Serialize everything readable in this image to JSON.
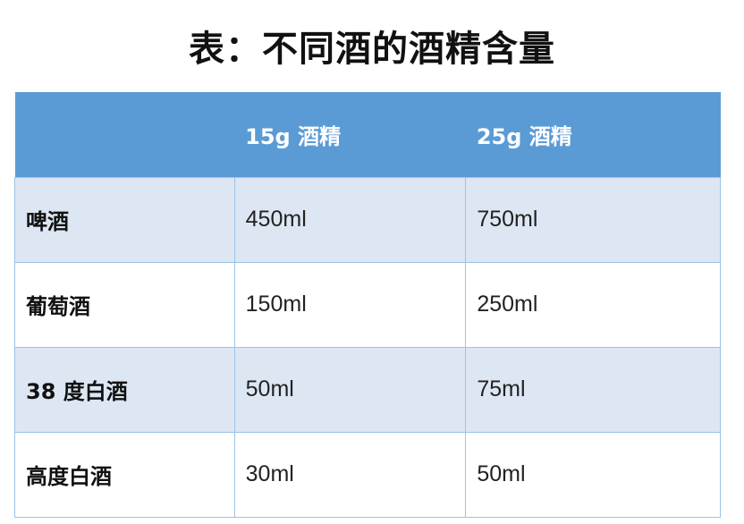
{
  "title": "表：不同酒的酒精含量",
  "table": {
    "headers": [
      "",
      "15g 酒精",
      "25g 酒精"
    ],
    "rows": [
      {
        "name": "啤酒",
        "v15": "450ml",
        "v25": "750ml"
      },
      {
        "name": "葡萄酒",
        "v15": "150ml",
        "v25": "250ml"
      },
      {
        "name": "38 度白酒",
        "v15": "50ml",
        "v25": "75ml"
      },
      {
        "name": "高度白酒",
        "v15": "30ml",
        "v25": "50ml"
      }
    ]
  },
  "colors": {
    "header": "#5b9bd5",
    "row_alt": "#dde7f3",
    "border": "#9dc3e6"
  }
}
